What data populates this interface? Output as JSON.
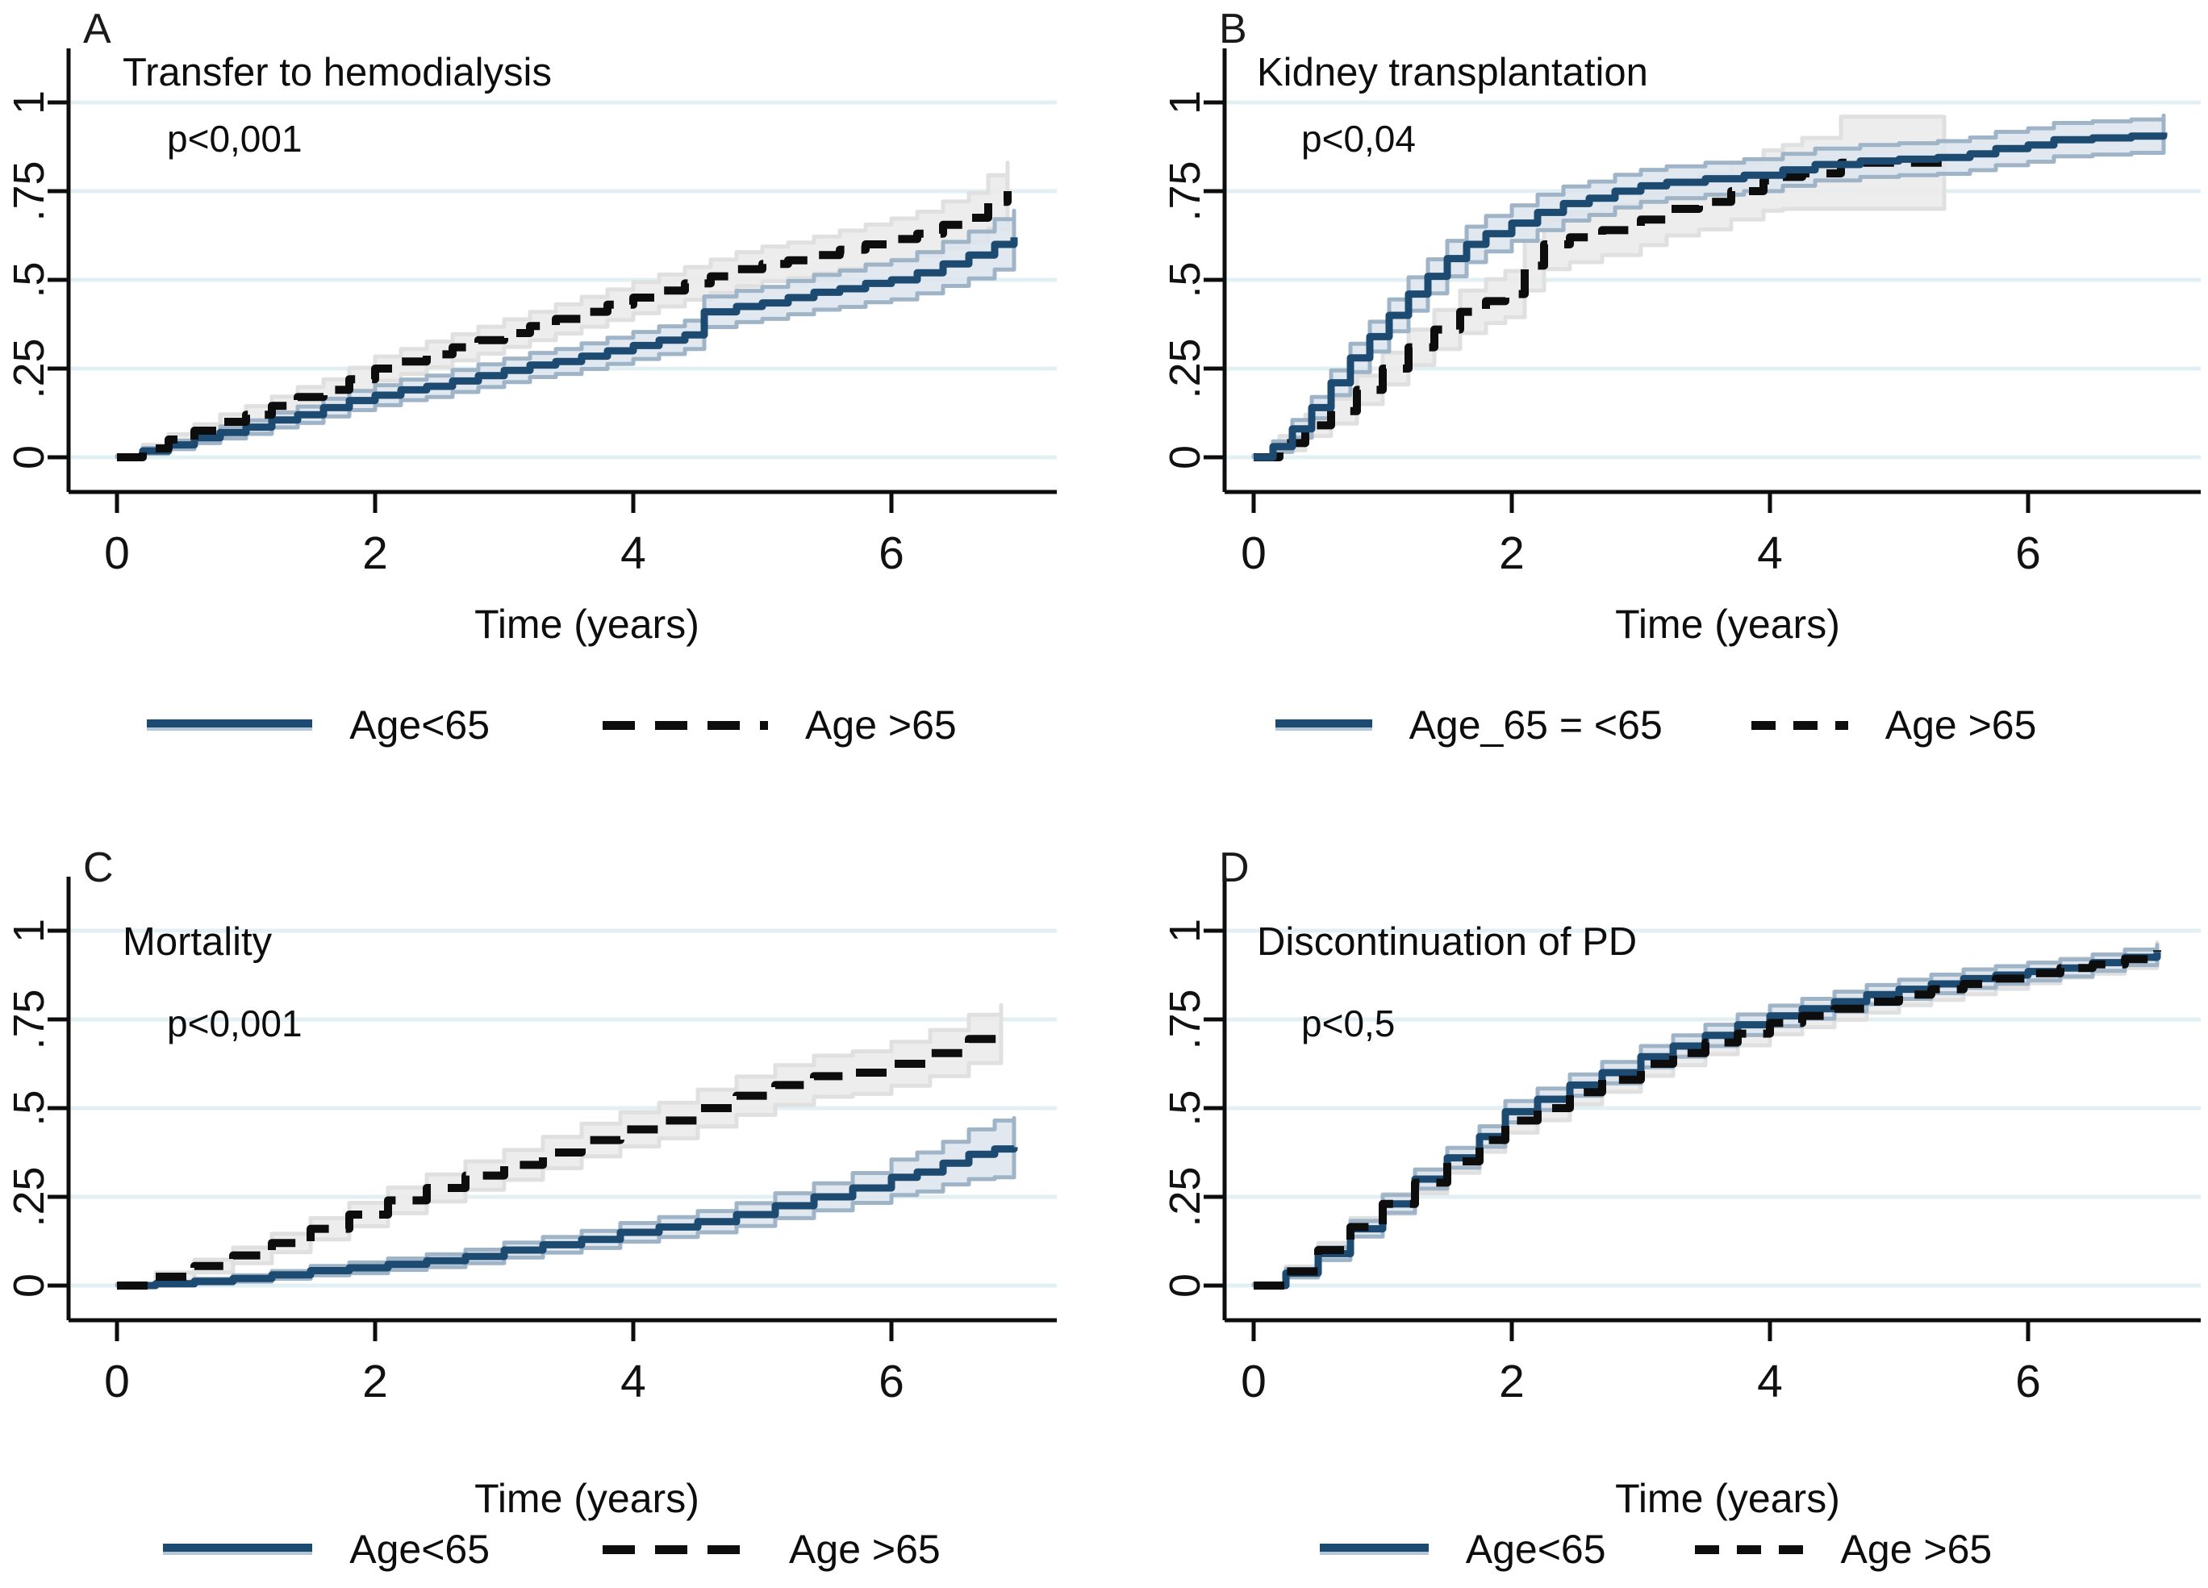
{
  "colors": {
    "line_blue": "#1d4a70",
    "line_black": "#0d0d0d",
    "ci_blue_fill": "#dce4ed",
    "ci_blue_edge": "#a0b4c8",
    "ci_gray_fill": "#ebebeb",
    "ci_gray_edge": "#e0e0e0",
    "gridline": "#e2f0f3",
    "axis": "#0d0d0d"
  },
  "chart_data": [
    {
      "panel": "A",
      "type": "line",
      "title": "Transfer to hemodialysis",
      "p_value": "p<0,001",
      "xlabel": "Time (years)",
      "ylabel": "",
      "xlim": [
        0,
        7.3
      ],
      "ylim": [
        0,
        1
      ],
      "xticks": [
        0,
        2,
        4,
        6
      ],
      "ytick_values": [
        0,
        0.25,
        0.5,
        0.75,
        1
      ],
      "yticks": [
        "0",
        ".25",
        ".5",
        ".75",
        "1"
      ],
      "grid": true,
      "legend_position": "bottom",
      "solid_on_top": false,
      "series": [
        {
          "name": "Age<65",
          "style": "solid",
          "color": "#1d4a70",
          "ci_fill": "#dce4ed",
          "ci_edge": "#a0b4c8",
          "ci_opacity": 0.85,
          "x": [
            0,
            0.2,
            0.4,
            0.6,
            0.8,
            1,
            1.2,
            1.4,
            1.6,
            1.8,
            2,
            2.2,
            2.4,
            2.6,
            2.8,
            3,
            3.2,
            3.4,
            3.6,
            3.8,
            4,
            4.2,
            4.4,
            4.55,
            4.8,
            5,
            5.2,
            5.4,
            5.6,
            5.8,
            6,
            6.2,
            6.4,
            6.6,
            6.8,
            6.95
          ],
          "y": [
            0,
            0.018,
            0.035,
            0.055,
            0.07,
            0.085,
            0.105,
            0.12,
            0.14,
            0.16,
            0.175,
            0.19,
            0.2,
            0.215,
            0.23,
            0.245,
            0.26,
            0.27,
            0.285,
            0.3,
            0.315,
            0.33,
            0.345,
            0.41,
            0.425,
            0.435,
            0.45,
            0.465,
            0.475,
            0.49,
            0.5,
            0.52,
            0.545,
            0.57,
            0.6,
            0.62
          ],
          "ci": [
            0.004,
            0.008,
            0.012,
            0.015,
            0.017,
            0.019,
            0.021,
            0.023,
            0.025,
            0.027,
            0.028,
            0.029,
            0.03,
            0.031,
            0.032,
            0.033,
            0.034,
            0.035,
            0.036,
            0.037,
            0.038,
            0.039,
            0.04,
            0.043,
            0.044,
            0.045,
            0.047,
            0.049,
            0.051,
            0.053,
            0.055,
            0.058,
            0.062,
            0.066,
            0.071,
            0.075
          ]
        },
        {
          "name": "Age >65",
          "style": "dashed",
          "color": "#0d0d0d",
          "ci_fill": "#ebebeb",
          "ci_edge": "#e0e0e0",
          "ci_opacity": 0.9,
          "x": [
            0,
            0.2,
            0.4,
            0.6,
            0.8,
            1,
            1.2,
            1.4,
            1.6,
            1.8,
            2,
            2.2,
            2.4,
            2.6,
            2.8,
            3,
            3.2,
            3.4,
            3.6,
            3.8,
            4,
            4.2,
            4.4,
            4.6,
            4.8,
            5,
            5.2,
            5.4,
            5.6,
            5.8,
            6,
            6.2,
            6.4,
            6.6,
            6.75,
            6.9
          ],
          "y": [
            0,
            0.025,
            0.05,
            0.075,
            0.1,
            0.12,
            0.145,
            0.17,
            0.19,
            0.22,
            0.25,
            0.27,
            0.29,
            0.31,
            0.33,
            0.35,
            0.37,
            0.39,
            0.41,
            0.43,
            0.45,
            0.47,
            0.49,
            0.51,
            0.53,
            0.545,
            0.555,
            0.57,
            0.585,
            0.6,
            0.615,
            0.63,
            0.655,
            0.675,
            0.72,
            0.75
          ],
          "ci": [
            0.005,
            0.01,
            0.015,
            0.018,
            0.021,
            0.024,
            0.026,
            0.028,
            0.03,
            0.032,
            0.034,
            0.035,
            0.036,
            0.037,
            0.038,
            0.039,
            0.04,
            0.041,
            0.042,
            0.043,
            0.044,
            0.045,
            0.046,
            0.047,
            0.048,
            0.049,
            0.05,
            0.052,
            0.054,
            0.056,
            0.058,
            0.062,
            0.066,
            0.07,
            0.075,
            0.08
          ]
        }
      ]
    },
    {
      "panel": "B",
      "type": "line",
      "title": "Kidney transplantation",
      "p_value": "p<0,04",
      "xlabel": "Time (years)",
      "ylabel": "",
      "xlim": [
        0,
        7.3
      ],
      "ylim": [
        0,
        1
      ],
      "xticks": [
        0,
        2,
        4,
        6
      ],
      "ytick_values": [
        0,
        0.25,
        0.5,
        0.75,
        1
      ],
      "yticks": [
        "0",
        ".25",
        ".5",
        ".75",
        "1"
      ],
      "grid": true,
      "legend_position": "bottom",
      "solid_on_top": true,
      "series": [
        {
          "name": "Age_65 = <65",
          "style": "solid",
          "color": "#1d4a70",
          "ci_fill": "#dce4ed",
          "ci_edge": "#a0b4c8",
          "ci_opacity": 0.85,
          "x": [
            0,
            0.15,
            0.3,
            0.45,
            0.6,
            0.75,
            0.9,
            1.05,
            1.2,
            1.35,
            1.5,
            1.65,
            1.8,
            2,
            2.2,
            2.4,
            2.6,
            2.8,
            3,
            3.2,
            3.5,
            3.8,
            4.1,
            4.35,
            4.7,
            5,
            5.3,
            5.55,
            5.75,
            6,
            6.2,
            6.5,
            6.8,
            7.05
          ],
          "y": [
            0,
            0.03,
            0.08,
            0.14,
            0.21,
            0.28,
            0.34,
            0.4,
            0.46,
            0.51,
            0.56,
            0.6,
            0.63,
            0.66,
            0.69,
            0.715,
            0.73,
            0.75,
            0.765,
            0.775,
            0.785,
            0.795,
            0.81,
            0.825,
            0.835,
            0.84,
            0.845,
            0.855,
            0.87,
            0.88,
            0.895,
            0.9,
            0.905,
            0.915
          ],
          "ci": [
            0.005,
            0.015,
            0.025,
            0.03,
            0.035,
            0.04,
            0.042,
            0.045,
            0.047,
            0.048,
            0.05,
            0.05,
            0.05,
            0.05,
            0.05,
            0.048,
            0.047,
            0.046,
            0.045,
            0.045,
            0.045,
            0.045,
            0.045,
            0.045,
            0.045,
            0.045,
            0.046,
            0.046,
            0.047,
            0.047,
            0.047,
            0.047,
            0.047,
            0.048
          ]
        },
        {
          "name": "Age >65",
          "style": "dashed",
          "color": "#0d0d0d",
          "ci_fill": "#ebebeb",
          "ci_edge": "#e0e0e0",
          "ci_opacity": 0.9,
          "x": [
            0,
            0.2,
            0.4,
            0.6,
            0.8,
            1,
            1.2,
            1.4,
            1.6,
            1.8,
            1.95,
            2.1,
            2.25,
            2.45,
            2.7,
            3,
            3.2,
            3.45,
            3.7,
            3.95,
            4.1,
            4.25,
            4.55,
            5.35
          ],
          "y": [
            0,
            0.04,
            0.09,
            0.13,
            0.19,
            0.25,
            0.31,
            0.36,
            0.41,
            0.44,
            0.46,
            0.54,
            0.6,
            0.62,
            0.64,
            0.67,
            0.7,
            0.72,
            0.75,
            0.78,
            0.79,
            0.8,
            0.83,
            0.83
          ],
          "ci": [
            0.005,
            0.02,
            0.03,
            0.035,
            0.04,
            0.045,
            0.05,
            0.055,
            0.06,
            0.062,
            0.065,
            0.07,
            0.07,
            0.07,
            0.07,
            0.072,
            0.075,
            0.078,
            0.08,
            0.085,
            0.09,
            0.1,
            0.13,
            0.13
          ]
        }
      ]
    },
    {
      "panel": "C",
      "type": "line",
      "title": "Mortality",
      "p_value": "p<0,001",
      "xlabel": "Time (years)",
      "ylabel": "",
      "xlim": [
        0,
        7.3
      ],
      "ylim": [
        0,
        1
      ],
      "xticks": [
        0,
        2,
        4,
        6
      ],
      "ytick_values": [
        0,
        0.25,
        0.5,
        0.75,
        1
      ],
      "yticks": [
        "0",
        ".25",
        ".5",
        ".75",
        "1"
      ],
      "grid": true,
      "legend_position": "bottom",
      "solid_on_top": false,
      "series": [
        {
          "name": "Age<65",
          "style": "solid",
          "color": "#1d4a70",
          "ci_fill": "#dce4ed",
          "ci_edge": "#a0b4c8",
          "ci_opacity": 0.85,
          "x": [
            0,
            0.3,
            0.6,
            0.9,
            1.2,
            1.5,
            1.8,
            2.1,
            2.4,
            2.7,
            3,
            3.3,
            3.6,
            3.9,
            4.2,
            4.5,
            4.8,
            5.1,
            5.4,
            5.7,
            6,
            6.2,
            6.4,
            6.6,
            6.8,
            6.95
          ],
          "y": [
            0,
            0.005,
            0.012,
            0.02,
            0.03,
            0.042,
            0.05,
            0.06,
            0.07,
            0.082,
            0.1,
            0.115,
            0.13,
            0.15,
            0.165,
            0.18,
            0.2,
            0.225,
            0.25,
            0.275,
            0.305,
            0.32,
            0.345,
            0.37,
            0.385,
            0.39
          ],
          "ci": [
            0.003,
            0.005,
            0.007,
            0.009,
            0.011,
            0.013,
            0.015,
            0.016,
            0.018,
            0.019,
            0.021,
            0.022,
            0.024,
            0.026,
            0.028,
            0.03,
            0.032,
            0.035,
            0.038,
            0.042,
            0.05,
            0.055,
            0.06,
            0.07,
            0.08,
            0.082
          ]
        },
        {
          "name": "Age >65",
          "style": "dashed",
          "color": "#0d0d0d",
          "ci_fill": "#ebebeb",
          "ci_edge": "#e0e0e0",
          "ci_opacity": 0.9,
          "x": [
            0,
            0.3,
            0.6,
            0.9,
            1.2,
            1.5,
            1.8,
            2.1,
            2.4,
            2.7,
            3,
            3.3,
            3.6,
            3.9,
            4.2,
            4.5,
            4.8,
            5.1,
            5.4,
            5.7,
            6,
            6.3,
            6.6,
            6.85
          ],
          "y": [
            0,
            0.025,
            0.055,
            0.085,
            0.12,
            0.16,
            0.2,
            0.24,
            0.275,
            0.31,
            0.34,
            0.375,
            0.41,
            0.44,
            0.465,
            0.5,
            0.535,
            0.565,
            0.59,
            0.6,
            0.625,
            0.655,
            0.695,
            0.72
          ],
          "ci": [
            0.004,
            0.012,
            0.018,
            0.022,
            0.026,
            0.03,
            0.033,
            0.036,
            0.038,
            0.04,
            0.042,
            0.044,
            0.046,
            0.048,
            0.05,
            0.052,
            0.054,
            0.056,
            0.058,
            0.06,
            0.062,
            0.065,
            0.068,
            0.07
          ]
        }
      ]
    },
    {
      "panel": "D",
      "type": "line",
      "title": "Discontinuation of PD",
      "p_value": "p<0,5",
      "xlabel": "Time (years)",
      "ylabel": "",
      "xlim": [
        0,
        7.3
      ],
      "ylim": [
        0,
        1
      ],
      "xticks": [
        0,
        2,
        4,
        6
      ],
      "ytick_values": [
        0,
        0.25,
        0.5,
        0.75,
        1
      ],
      "yticks": [
        "0",
        ".25",
        ".5",
        ".75",
        "1"
      ],
      "grid": true,
      "legend_position": "bottom",
      "solid_on_top": false,
      "series": [
        {
          "name": "Age<65",
          "style": "solid",
          "color": "#1d4a70",
          "ci_fill": "#dce4ed",
          "ci_edge": "#a0b4c8",
          "ci_opacity": 0.85,
          "x": [
            0,
            0.25,
            0.5,
            0.75,
            1,
            1.25,
            1.5,
            1.75,
            1.95,
            2.2,
            2.45,
            2.7,
            3,
            3.25,
            3.5,
            3.75,
            4,
            4.25,
            4.5,
            4.75,
            5,
            5.25,
            5.5,
            5.75,
            6,
            6.25,
            6.5,
            6.75,
            7
          ],
          "y": [
            0,
            0.035,
            0.09,
            0.16,
            0.23,
            0.3,
            0.36,
            0.42,
            0.49,
            0.525,
            0.565,
            0.6,
            0.645,
            0.675,
            0.705,
            0.735,
            0.76,
            0.78,
            0.8,
            0.82,
            0.835,
            0.85,
            0.865,
            0.875,
            0.885,
            0.895,
            0.91,
            0.925,
            0.94
          ],
          "ci": [
            0.004,
            0.012,
            0.018,
            0.022,
            0.025,
            0.027,
            0.028,
            0.029,
            0.03,
            0.03,
            0.03,
            0.03,
            0.03,
            0.03,
            0.03,
            0.029,
            0.029,
            0.028,
            0.028,
            0.027,
            0.027,
            0.026,
            0.026,
            0.025,
            0.025,
            0.024,
            0.023,
            0.022,
            0.02
          ]
        },
        {
          "name": "Age >65",
          "style": "dashed",
          "color": "#0d0d0d",
          "ci_fill": "#ebebeb",
          "ci_edge": "#e0e0e0",
          "ci_opacity": 0.9,
          "x": [
            0,
            0.25,
            0.5,
            0.75,
            1,
            1.25,
            1.5,
            1.75,
            1.95,
            2.2,
            2.45,
            2.7,
            3,
            3.25,
            3.5,
            3.75,
            4,
            4.25,
            4.5,
            4.75,
            5,
            5.25,
            5.5,
            5.75,
            6,
            6.25,
            6.5,
            6.75,
            7
          ],
          "y": [
            0,
            0.04,
            0.1,
            0.165,
            0.23,
            0.29,
            0.35,
            0.41,
            0.465,
            0.5,
            0.545,
            0.58,
            0.625,
            0.655,
            0.685,
            0.71,
            0.74,
            0.76,
            0.78,
            0.8,
            0.82,
            0.835,
            0.85,
            0.865,
            0.88,
            0.895,
            0.905,
            0.92,
            0.945
          ],
          "ci": [
            0.004,
            0.014,
            0.02,
            0.025,
            0.028,
            0.03,
            0.032,
            0.033,
            0.034,
            0.034,
            0.034,
            0.034,
            0.034,
            0.034,
            0.033,
            0.033,
            0.032,
            0.032,
            0.031,
            0.031,
            0.03,
            0.03,
            0.029,
            0.029,
            0.028,
            0.027,
            0.026,
            0.025,
            0.022
          ]
        }
      ]
    }
  ]
}
